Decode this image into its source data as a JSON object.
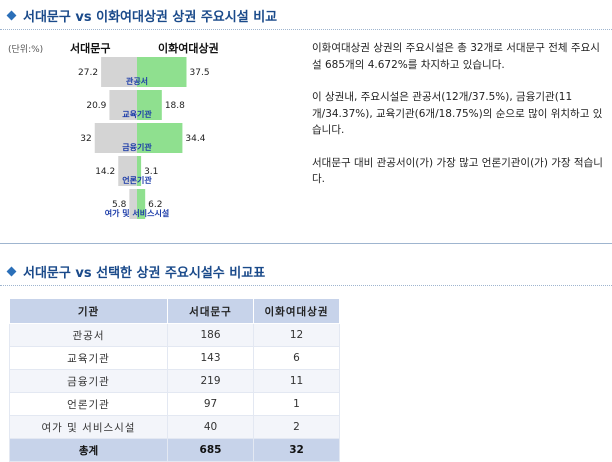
{
  "sections": {
    "top_title": "서대문구 vs 이화여대상권 상권 주요시설 비교",
    "bottom_title": "서대문구 vs 선택한 상권 주요시설수 비교표"
  },
  "unit_label": "(단위:%)",
  "description": {
    "para1": "이화여대상권 상권의 주요시설은 총 32개로 서대문구 전체 주요시설 685개의 4.672%를 차지하고 있습니다.",
    "para2": "이 상권내, 주요시설은 관공서(12개/37.5%), 금융기관(11개/34.37%), 교육기관(6개/18.75%)의 순으로 많이 위치하고 있습니다.",
    "para3": "서대문구 대비 관공서이(가) 가장 많고 언론기관이(가) 가장 적습니다."
  },
  "colors": {
    "left_bar": "#d4d4d4",
    "right_bar": "#8fe08f",
    "title": "#1a4a8a",
    "table_header": "#c7d3ea"
  },
  "chart_data": {
    "type": "bar",
    "orientation": "horizontal-diverging",
    "categories": [
      "관공서",
      "교육기관",
      "금융기관",
      "언론기관",
      "여가 및 서비스시설"
    ],
    "series": [
      {
        "name": "서대문구",
        "values": [
          27.2,
          20.9,
          32,
          14.2,
          5.8
        ]
      },
      {
        "name": "이화여대상권",
        "values": [
          37.5,
          18.8,
          34.4,
          3.1,
          6.2
        ]
      }
    ],
    "unit": "(단위:%)"
  },
  "table": {
    "headers": [
      "기관",
      "서대문구",
      "이화여대상권"
    ],
    "rows": [
      [
        "관공서",
        "186",
        "12"
      ],
      [
        "교육기관",
        "143",
        "6"
      ],
      [
        "금융기관",
        "219",
        "11"
      ],
      [
        "언론기관",
        "97",
        "1"
      ],
      [
        "여가 및 서비스시설",
        "40",
        "2"
      ]
    ],
    "total": [
      "총계",
      "685",
      "32"
    ]
  }
}
